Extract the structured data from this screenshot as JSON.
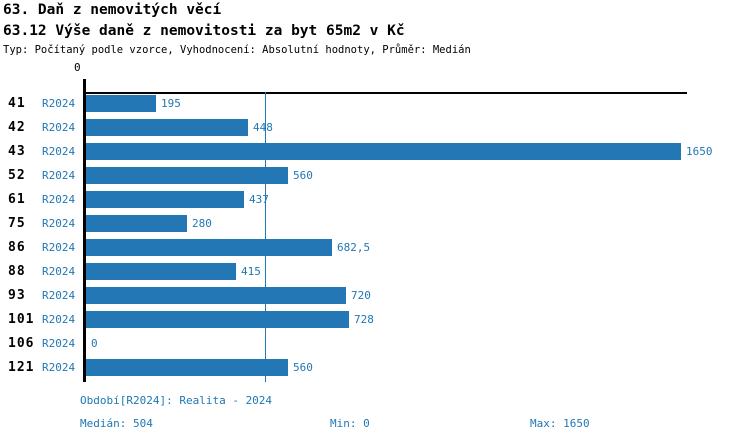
{
  "header": {
    "title_line1": "63. Daň z nemovitých věcí",
    "title_line2": "63.12 Výše daně z nemovitosti za byt 65m2 v Kč",
    "meta": "Typ: Počítaný podle vzorce, Vyhodnocení: Absolutní hodnoty, Průměr: Medián"
  },
  "chart_data": {
    "type": "bar",
    "orientation": "horizontal",
    "title": "63.12 Výše daně z nemovitosti za byt 65m2 v Kč",
    "categories": [
      "41",
      "42",
      "43",
      "52",
      "61",
      "75",
      "86",
      "88",
      "93",
      "101",
      "106",
      "121"
    ],
    "series": [
      {
        "name": "R2024",
        "values": [
          195,
          448,
          1650,
          560,
          437,
          280,
          682.5,
          415,
          720,
          728,
          0,
          560
        ]
      }
    ],
    "value_labels": [
      "195",
      "448",
      "1650",
      "560",
      "437",
      "280",
      "682,5",
      "415",
      "720",
      "728",
      "0",
      "560"
    ],
    "period_label": "R2024",
    "axis": {
      "min": 0,
      "max": 1650,
      "origin_tick_label": "0"
    },
    "median_line_value": 504,
    "bar_color": "#2377b5",
    "label_color": "#1f77b4",
    "grid": false,
    "legend_position": "none"
  },
  "footer": {
    "period": "Období[R2024]: Realita - 2024",
    "median": "Medián: 504",
    "min": "Min: 0",
    "max": "Max: 1650"
  }
}
